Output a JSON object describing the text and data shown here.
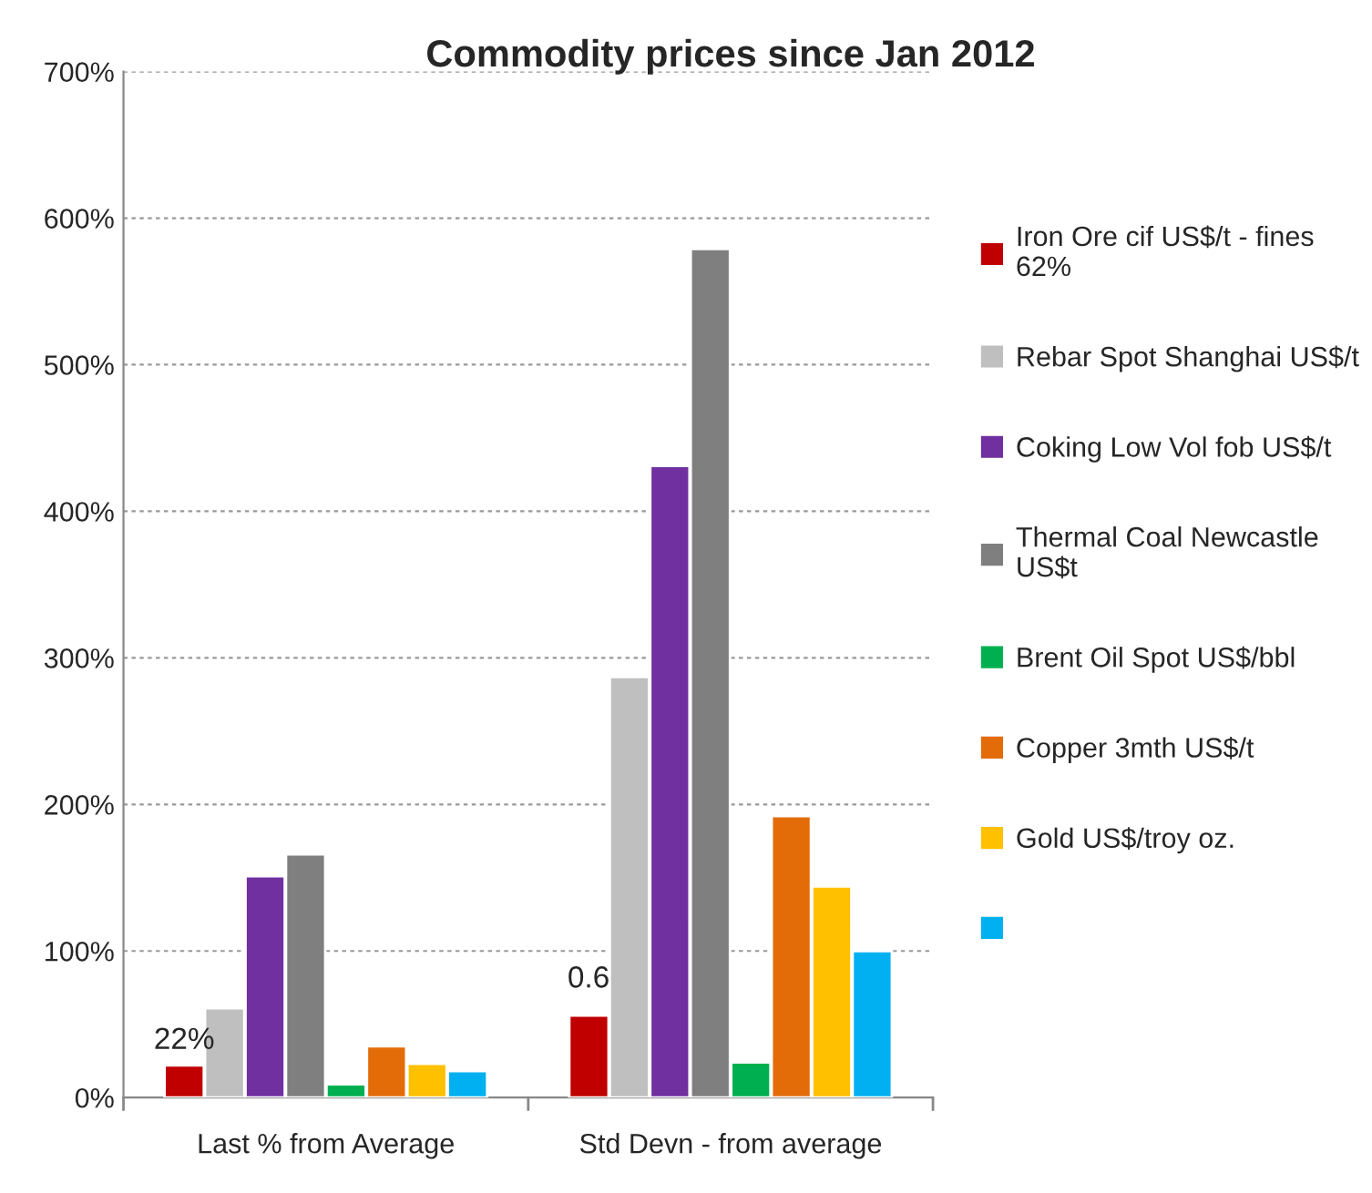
{
  "chart_data": {
    "type": "bar",
    "title": "Commodity prices since Jan 2012",
    "categories": [
      "Last % from Average",
      "Std Devn - from average"
    ],
    "series": [
      {
        "name": "Iron Ore cif US$/t - fines 62%",
        "color": "#c00000",
        "values": [
          22,
          56
        ],
        "value_labels": [
          "22%",
          null
        ]
      },
      {
        "name": "Rebar Spot Shanghai US$/t",
        "color": "#bfbfbf",
        "values": [
          61,
          287
        ]
      },
      {
        "name": "Coking Low Vol fob US$/t",
        "color": "#7030a0",
        "values": [
          151,
          431
        ]
      },
      {
        "name": "Thermal Coal Newcastle US$t",
        "color": "#7f7f7f",
        "values": [
          166,
          579
        ]
      },
      {
        "name": "Brent Oil Spot US$/bbl",
        "color": "#00b050",
        "values": [
          9,
          24
        ]
      },
      {
        "name": "Copper 3mth US$/t",
        "color": "#e36c09",
        "values": [
          35,
          192
        ]
      },
      {
        "name": "Gold US$/troy oz.",
        "color": "#ffc000",
        "values": [
          23,
          144
        ]
      },
      {
        "color": "#00b0f0",
        "values": [
          18,
          100
        ]
      }
    ],
    "ylim": [
      0,
      700
    ],
    "yticks": [
      {
        "value": 0,
        "label": "0%"
      },
      {
        "value": 100,
        "label": "100%"
      },
      {
        "value": 200,
        "label": "200%"
      },
      {
        "value": 300,
        "label": "300%"
      },
      {
        "value": 400,
        "label": "400%"
      },
      {
        "value": 500,
        "label": "500%"
      },
      {
        "value": 600,
        "label": "600%"
      },
      {
        "value": 700,
        "label": "700%"
      }
    ],
    "annotations": [
      "0.6"
    ],
    "grid": "y",
    "legend": "right"
  }
}
